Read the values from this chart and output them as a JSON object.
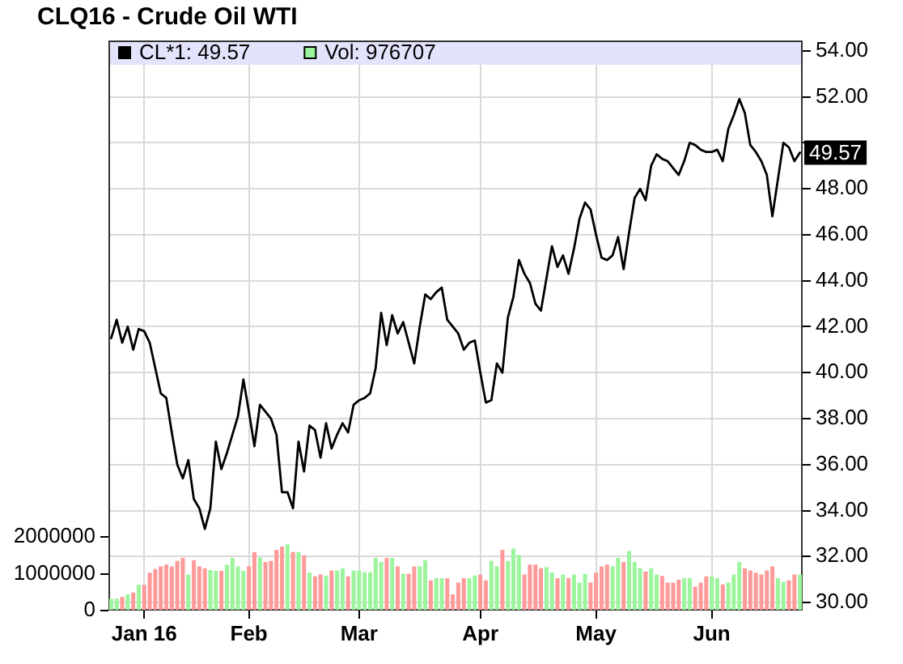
{
  "chart_data": {
    "type": "line",
    "title": "CLQ16 - Crude Oil WTI",
    "categories": [
      null,
      null,
      null,
      null,
      null,
      null,
      "Jan 16",
      null,
      null,
      null,
      null,
      null,
      null,
      null,
      null,
      null,
      null,
      null,
      null,
      null,
      null,
      null,
      null,
      null,
      null,
      "Feb",
      null,
      null,
      null,
      null,
      null,
      null,
      null,
      null,
      null,
      null,
      null,
      null,
      null,
      null,
      null,
      null,
      null,
      null,
      null,
      "Mar",
      null,
      null,
      null,
      null,
      null,
      null,
      null,
      null,
      null,
      null,
      null,
      null,
      null,
      null,
      null,
      null,
      null,
      null,
      null,
      null,
      null,
      "Apr",
      null,
      null,
      null,
      null,
      null,
      null,
      null,
      null,
      null,
      null,
      null,
      null,
      null,
      null,
      null,
      null,
      null,
      null,
      null,
      null,
      "May",
      null,
      null,
      null,
      null,
      null,
      null,
      null,
      null,
      null,
      null,
      null,
      null,
      null,
      null,
      null,
      null,
      null,
      null,
      null,
      null,
      "Jun",
      null,
      null,
      null,
      null,
      null,
      null,
      null,
      null,
      null,
      null,
      null,
      null,
      null,
      null,
      null,
      null
    ],
    "series": [
      {
        "name": "CL*1: 49.57",
        "color": "#000000",
        "values": [
          41.5,
          42.3,
          41.3,
          42.0,
          41.0,
          41.9,
          41.8,
          41.3,
          40.2,
          39.1,
          38.9,
          37.4,
          36.0,
          35.4,
          36.2,
          34.5,
          34.1,
          33.2,
          34.1,
          37.0,
          35.8,
          36.5,
          37.3,
          38.1,
          39.7,
          38.3,
          36.8,
          38.6,
          38.3,
          38.0,
          37.3,
          34.8,
          34.8,
          34.1,
          37.0,
          35.7,
          37.7,
          37.5,
          36.3,
          37.8,
          36.7,
          37.3,
          37.8,
          37.4,
          38.6,
          38.8,
          38.9,
          39.1,
          40.2,
          42.6,
          41.2,
          42.5,
          41.7,
          42.2,
          41.3,
          40.4,
          42.0,
          43.4,
          43.2,
          43.5,
          43.7,
          42.3,
          42.0,
          41.7,
          41.0,
          41.3,
          41.4,
          40.0,
          38.7,
          38.8,
          40.4,
          40.0,
          42.4,
          43.3,
          44.9,
          44.3,
          43.9,
          43.0,
          42.7,
          44.1,
          45.5,
          44.6,
          45.1,
          44.3,
          45.4,
          46.7,
          47.4,
          47.1,
          46.0,
          45.0,
          44.9,
          45.1,
          45.9,
          44.5,
          46.1,
          47.6,
          48.0,
          47.5,
          49.0,
          49.5,
          49.3,
          49.2,
          48.9,
          48.6,
          49.2,
          50.0,
          49.9,
          49.7,
          49.6,
          49.6,
          49.7,
          49.2,
          50.6,
          51.2,
          51.9,
          51.3,
          49.9,
          49.6,
          49.2,
          48.6,
          46.8,
          48.4,
          50.0,
          49.8,
          49.2,
          49.57
        ]
      },
      {
        "name": "Vol: 976707",
        "type": "bar",
        "axis": "y2",
        "color": "#9cf59c",
        "colors": [
          "#9cf59c",
          "#9cf59c",
          "#ff9a9a",
          "#9cf59c",
          "#ff9a9a",
          "#9cf59c",
          "#ff9a9a",
          "#ff9a9a",
          "#ff9a9a",
          "#ff9a9a",
          "#ff9a9a",
          "#ff9a9a",
          "#ff9a9a",
          "#ff9a9a",
          "#9cf59c",
          "#ff9a9a",
          "#ff9a9a",
          "#ff9a9a",
          "#9cf59c",
          "#9cf59c",
          "#ff9a9a",
          "#9cf59c",
          "#9cf59c",
          "#9cf59c",
          "#9cf59c",
          "#ff9a9a",
          "#ff9a9a",
          "#9cf59c",
          "#ff9a9a",
          "#ff9a9a",
          "#ff9a9a",
          "#ff9a9a",
          "#9cf59c",
          "#ff9a9a",
          "#9cf59c",
          "#ff9a9a",
          "#9cf59c",
          "#ff9a9a",
          "#ff9a9a",
          "#9cf59c",
          "#ff9a9a",
          "#9cf59c",
          "#9cf59c",
          "#ff9a9a",
          "#9cf59c",
          "#9cf59c",
          "#9cf59c",
          "#9cf59c",
          "#9cf59c",
          "#9cf59c",
          "#ff9a9a",
          "#9cf59c",
          "#ff9a9a",
          "#9cf59c",
          "#ff9a9a",
          "#ff9a9a",
          "#9cf59c",
          "#9cf59c",
          "#ff9a9a",
          "#9cf59c",
          "#9cf59c",
          "#ff9a9a",
          "#ff9a9a",
          "#ff9a9a",
          "#ff9a9a",
          "#9cf59c",
          "#9cf59c",
          "#ff9a9a",
          "#ff9a9a",
          "#9cf59c",
          "#9cf59c",
          "#ff9a9a",
          "#9cf59c",
          "#9cf59c",
          "#9cf59c",
          "#ff9a9a",
          "#ff9a9a",
          "#ff9a9a",
          "#ff9a9a",
          "#9cf59c",
          "#9cf59c",
          "#ff9a9a",
          "#9cf59c",
          "#ff9a9a",
          "#9cf59c",
          "#9cf59c",
          "#9cf59c",
          "#ff9a9a",
          "#ff9a9a",
          "#ff9a9a",
          "#ff9a9a",
          "#9cf59c",
          "#9cf59c",
          "#ff9a9a",
          "#9cf59c",
          "#9cf59c",
          "#9cf59c",
          "#ff9a9a",
          "#9cf59c",
          "#9cf59c",
          "#ff9a9a",
          "#ff9a9a",
          "#ff9a9a",
          "#ff9a9a",
          "#9cf59c",
          "#9cf59c",
          "#ff9a9a",
          "#ff9a9a",
          "#ff9a9a",
          "#9cf59c",
          "#9cf59c",
          "#ff9a9a",
          "#9cf59c",
          "#9cf59c",
          "#9cf59c",
          "#ff9a9a",
          "#ff9a9a",
          "#ff9a9a",
          "#ff9a9a",
          "#ff9a9a",
          "#ff9a9a",
          "#9cf59c",
          "#9cf59c",
          "#ff9a9a",
          "#ff9a9a",
          "#9cf59c"
        ],
        "values": [
          320000,
          320000,
          370000,
          440000,
          490000,
          700000,
          700000,
          1030000,
          1130000,
          1200000,
          1250000,
          1200000,
          1350000,
          1430000,
          980000,
          1370000,
          1200000,
          1150000,
          1100000,
          1080000,
          1080000,
          1250000,
          1430000,
          1200000,
          1080000,
          1200000,
          1590000,
          1440000,
          1320000,
          1350000,
          1650000,
          1740000,
          1800000,
          1590000,
          1590000,
          1500000,
          1030000,
          930000,
          980000,
          940000,
          1090000,
          1090000,
          1150000,
          930000,
          1090000,
          1090000,
          1040000,
          1040000,
          1430000,
          1320000,
          1430000,
          1430000,
          1200000,
          1000000,
          1000000,
          1200000,
          1200000,
          1370000,
          820000,
          880000,
          880000,
          880000,
          440000,
          760000,
          880000,
          880000,
          950000,
          980000,
          820000,
          1350000,
          1200000,
          1650000,
          1350000,
          1690000,
          1510000,
          980000,
          1250000,
          1250000,
          1150000,
          1180000,
          1030000,
          880000,
          980000,
          880000,
          980000,
          760000,
          1000000,
          760000,
          1030000,
          1200000,
          1250000,
          1200000,
          1430000,
          1320000,
          1620000,
          1320000,
          1150000,
          1060000,
          1150000,
          980000,
          940000,
          760000,
          760000,
          840000,
          880000,
          880000,
          650000,
          760000,
          930000,
          930000,
          880000,
          710000,
          760000,
          980000,
          1320000,
          1150000,
          1090000,
          1030000,
          980000,
          1090000,
          1200000,
          880000,
          780000,
          820000,
          980000,
          976707
        ]
      }
    ],
    "ylim": [
      29.65,
      54.45
    ],
    "yticks": [
      {
        "value": 30,
        "label": "30.00"
      },
      {
        "value": 32,
        "label": "32.00"
      },
      {
        "value": 34,
        "label": "34.00"
      },
      {
        "value": 36,
        "label": "36.00"
      },
      {
        "value": 38,
        "label": "38.00"
      },
      {
        "value": 40,
        "label": "40.00"
      },
      {
        "value": 42,
        "label": "42.00"
      },
      {
        "value": 44,
        "label": "44.00"
      },
      {
        "value": 46,
        "label": "46.00"
      },
      {
        "value": 48,
        "label": "48.00"
      },
      {
        "value": 50,
        "label": null
      },
      {
        "value": 52,
        "label": "52.00"
      },
      {
        "value": 54,
        "label": "54.00"
      }
    ],
    "y2lim": [
      0,
      15500000
    ],
    "y2ticks": [
      0,
      1000000,
      2000000
    ],
    "annotations": [
      {
        "text": "49.57",
        "y": 49.57
      }
    ],
    "grid": true,
    "legend": "top left"
  }
}
